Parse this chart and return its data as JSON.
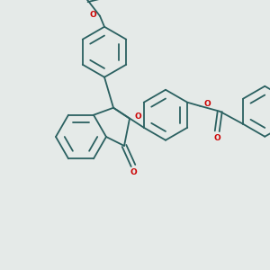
{
  "bg_color": "#e5eae8",
  "bond_color": "#2a6060",
  "oxygen_color": "#cc0000",
  "lw": 1.3,
  "figsize": [
    3.0,
    3.0
  ],
  "dpi": 100,
  "xlim": [
    0,
    300
  ],
  "ylim": [
    0,
    300
  ]
}
